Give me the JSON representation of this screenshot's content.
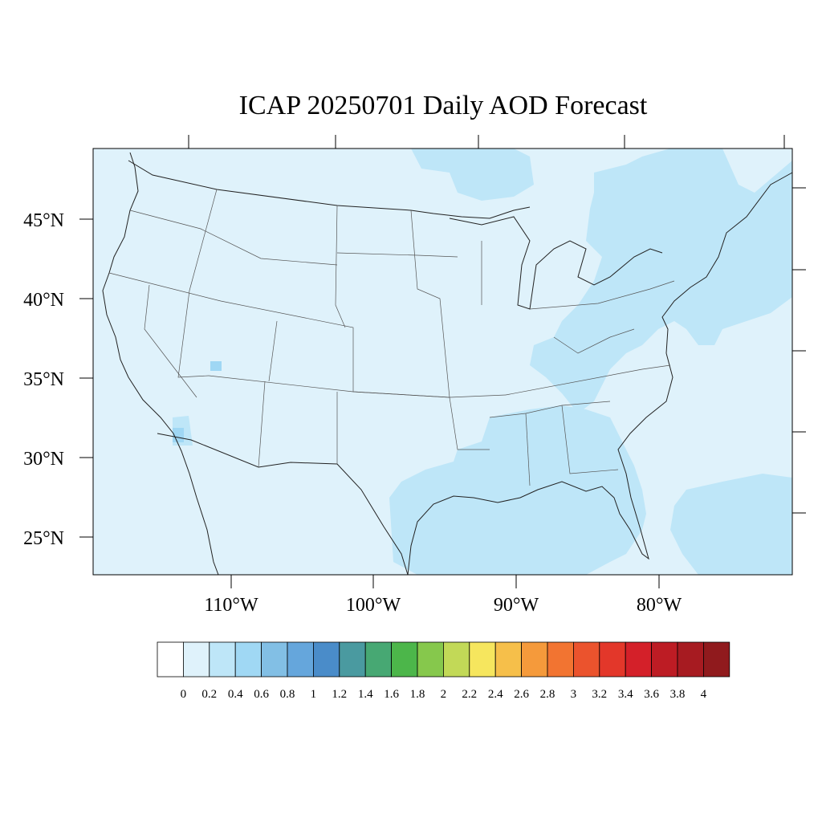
{
  "title": "ICAP 20250701 Daily AOD Forecast",
  "map": {
    "projection": "equidistant-cylindrical",
    "lat_labels": [
      "45°N",
      "40°N",
      "35°N",
      "30°N",
      "25°N"
    ],
    "lat_values": [
      45,
      40,
      35,
      30,
      25
    ],
    "lon_labels": [
      "110°W",
      "100°W",
      "90°W",
      "80°W"
    ],
    "lon_values": [
      -110,
      -100,
      -90,
      -80
    ],
    "background_color": "#dff2fb",
    "elevated_color": "#bee6f8",
    "hotspot_color": "#9fd7f4"
  },
  "colorbar": {
    "labels": [
      "0",
      "0.2",
      "0.4",
      "0.6",
      "0.8",
      "1",
      "1.2",
      "1.4",
      "1.6",
      "1.8",
      "2",
      "2.2",
      "2.4",
      "2.6",
      "2.8",
      "3",
      "3.2",
      "3.4",
      "3.6",
      "3.8",
      "4"
    ],
    "colors": [
      "#ffffff",
      "#dff2fb",
      "#bee6f8",
      "#a0d8f4",
      "#82bfe5",
      "#65a6dc",
      "#4a8cc9",
      "#4a9aa0",
      "#47a873",
      "#4cb64a",
      "#86c84c",
      "#c2d957",
      "#f6e65e",
      "#f6bf4a",
      "#f59a3b",
      "#f27431",
      "#eb532d",
      "#e3372a",
      "#d42029",
      "#bd1c24",
      "#a71b21",
      "#901a1d"
    ]
  }
}
